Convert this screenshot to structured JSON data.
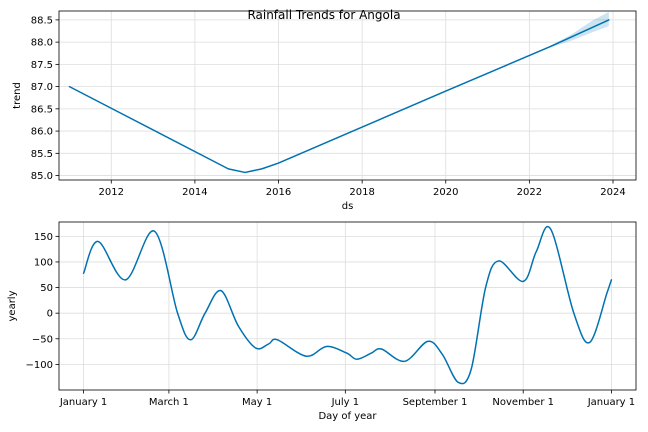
{
  "chart_data": [
    {
      "type": "line",
      "title": "Rainfall Trends for Angola",
      "xlabel": "ds",
      "ylabel": "trend",
      "grid": true,
      "xlim": [
        2010.75,
        2024.55
      ],
      "ylim": [
        84.9,
        88.7
      ],
      "x_ticks": [
        2012,
        2014,
        2016,
        2018,
        2020,
        2022,
        2024
      ],
      "x_tick_labels": [
        "2012",
        "2014",
        "2016",
        "2018",
        "2020",
        "2022",
        "2024"
      ],
      "y_ticks": [
        85.0,
        85.5,
        86.0,
        86.5,
        87.0,
        87.5,
        88.0,
        88.5
      ],
      "y_tick_labels": [
        "85.0",
        "85.5",
        "86.0",
        "86.5",
        "87.0",
        "87.5",
        "88.0",
        "88.5"
      ],
      "line_color": "#0072B2",
      "band_color": "#0072B2",
      "series": [
        {
          "values": [
            {
              "x": 2011.0,
              "y": 87.0
            },
            {
              "x": 2014.8,
              "y": 85.15
            },
            {
              "x": 2015.2,
              "y": 85.07
            },
            {
              "x": 2015.6,
              "y": 85.15
            },
            {
              "x": 2016.0,
              "y": 85.28
            },
            {
              "x": 2020.0,
              "y": 86.9
            },
            {
              "x": 2022.5,
              "y": 87.9
            },
            {
              "x": 2023.9,
              "y": 88.5
            }
          ]
        }
      ],
      "uncertainty_band": [
        {
          "x": 2022.5,
          "lower": 87.88,
          "upper": 87.92
        },
        {
          "x": 2023.0,
          "lower": 88.03,
          "upper": 88.17
        },
        {
          "x": 2023.5,
          "lower": 88.22,
          "upper": 88.48
        },
        {
          "x": 2023.9,
          "lower": 88.36,
          "upper": 88.68
        }
      ]
    },
    {
      "type": "line",
      "title": "",
      "xlabel": "Day of year",
      "ylabel": "yearly",
      "grid": true,
      "xlim": [
        -17,
        382
      ],
      "ylim": [
        -150,
        178
      ],
      "x_ticks": [
        0,
        59,
        120,
        181,
        243,
        304,
        365
      ],
      "x_tick_labels": [
        "January 1",
        "March 1",
        "May 1",
        "July 1",
        "September 1",
        "November 1",
        "January 1"
      ],
      "y_ticks": [
        -100,
        -50,
        0,
        50,
        100,
        150
      ],
      "y_tick_labels": [
        "−100",
        "−50",
        "0",
        "50",
        "100",
        "150"
      ],
      "line_color": "#0072B2",
      "series": [
        {
          "values": [
            {
              "x": 0,
              "y": 78
            },
            {
              "x": 10,
              "y": 140
            },
            {
              "x": 29,
              "y": 65
            },
            {
              "x": 49,
              "y": 160
            },
            {
              "x": 65,
              "y": 0
            },
            {
              "x": 74,
              "y": -52
            },
            {
              "x": 84,
              "y": 0
            },
            {
              "x": 95,
              "y": 44
            },
            {
              "x": 107,
              "y": -25
            },
            {
              "x": 119,
              "y": -68
            },
            {
              "x": 128,
              "y": -60
            },
            {
              "x": 134,
              "y": -52
            },
            {
              "x": 154,
              "y": -84
            },
            {
              "x": 168,
              "y": -65
            },
            {
              "x": 182,
              "y": -78
            },
            {
              "x": 189,
              "y": -90
            },
            {
              "x": 199,
              "y": -78
            },
            {
              "x": 206,
              "y": -70
            },
            {
              "x": 222,
              "y": -94
            },
            {
              "x": 238,
              "y": -55
            },
            {
              "x": 248,
              "y": -80
            },
            {
              "x": 259,
              "y": -135
            },
            {
              "x": 268,
              "y": -110
            },
            {
              "x": 278,
              "y": 50
            },
            {
              "x": 287,
              "y": 102
            },
            {
              "x": 304,
              "y": 62
            },
            {
              "x": 313,
              "y": 120
            },
            {
              "x": 323,
              "y": 164
            },
            {
              "x": 339,
              "y": 0
            },
            {
              "x": 350,
              "y": -57
            },
            {
              "x": 362,
              "y": 40
            },
            {
              "x": 365,
              "y": 65
            }
          ]
        }
      ]
    }
  ]
}
